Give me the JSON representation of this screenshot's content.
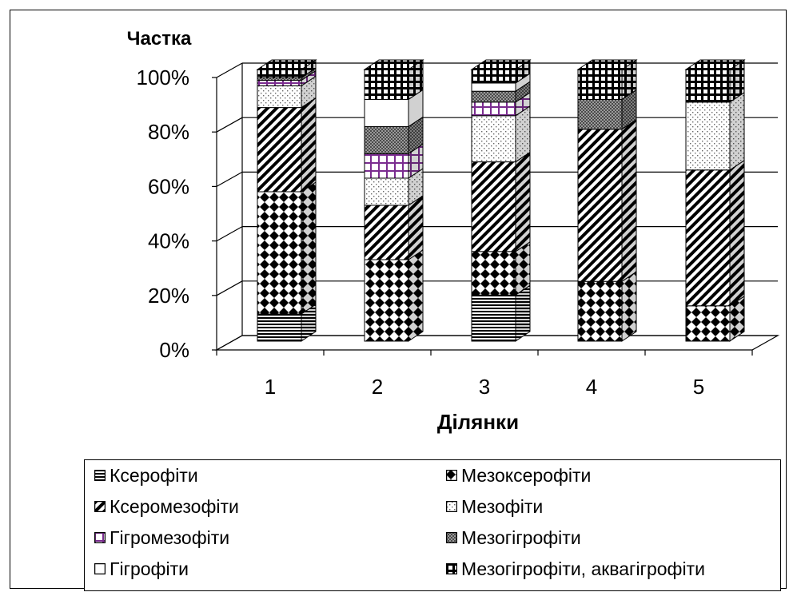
{
  "chart_data": {
    "type": "bar",
    "stacked": "percent",
    "three_d": true,
    "title": "",
    "ylabel": "Частка",
    "xlabel": "Ділянки",
    "ylim": [
      0,
      100
    ],
    "yticks": [
      "0%",
      "20%",
      "40%",
      "60%",
      "80%",
      "100%"
    ],
    "categories": [
      "1",
      "2",
      "3",
      "4",
      "5"
    ],
    "grid": true,
    "legend_position": "bottom",
    "series": [
      {
        "name": "Ксерофіти",
        "pattern": "horizontal-lines",
        "values": [
          10,
          0,
          17,
          0,
          0
        ]
      },
      {
        "name": "Мезоксерофіти",
        "pattern": "checker-diamond",
        "values": [
          45,
          30,
          16,
          22,
          13
        ]
      },
      {
        "name": "Ксеромезофіти",
        "pattern": "diagonal-stripes",
        "values": [
          31,
          20,
          33,
          56,
          50
        ]
      },
      {
        "name": "Мезофіти",
        "pattern": "dotted",
        "values": [
          8,
          10,
          17,
          0,
          25
        ]
      },
      {
        "name": "Гігромезофіти",
        "pattern": "purple-grid",
        "values": [
          2,
          9,
          5,
          0,
          0
        ]
      },
      {
        "name": "Мезогігрофіти",
        "pattern": "gray-dense",
        "values": [
          1,
          10,
          4,
          11,
          0
        ]
      },
      {
        "name": "Гігрофіти",
        "pattern": "blank",
        "values": [
          0,
          10,
          3,
          0,
          0
        ]
      },
      {
        "name": "Мезогігрофіти, аквагігрофіти",
        "pattern": "grid",
        "values": [
          3,
          11,
          5,
          11,
          12
        ]
      }
    ]
  }
}
